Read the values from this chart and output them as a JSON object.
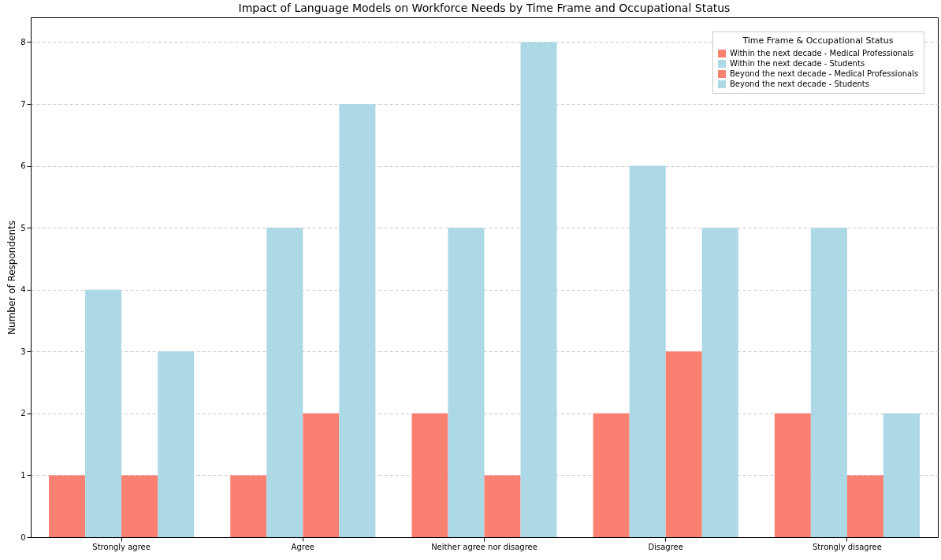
{
  "chart_data": {
    "type": "bar",
    "title": "Impact of Language Models on Workforce Needs by Time Frame and Occupational Status",
    "ylabel": "Number of Respondents",
    "legend_title": "Time Frame & Occupational Status",
    "categories": [
      "Strongly agree",
      "Agree",
      "Neither agree nor disagree",
      "Disagree",
      "Strongly disagree"
    ],
    "series": [
      {
        "name": "Within the next decade - Medical Professionals",
        "color": "#fa8072",
        "values": [
          1,
          1,
          2,
          2,
          2
        ]
      },
      {
        "name": "Within the next decade - Students",
        "color": "#add8e6",
        "values": [
          4,
          5,
          5,
          6,
          5
        ]
      },
      {
        "name": "Beyond the next decade - Medical Professionals",
        "color": "#fa8072",
        "values": [
          1,
          2,
          1,
          3,
          1
        ]
      },
      {
        "name": "Beyond the next decade - Students",
        "color": "#add8e6",
        "values": [
          3,
          7,
          8,
          5,
          2
        ]
      }
    ],
    "ylim": [
      0,
      8.4
    ],
    "yticks": [
      0,
      1,
      2,
      3,
      4,
      5,
      6,
      7,
      8
    ],
    "grid": "y",
    "legend": "top right"
  }
}
